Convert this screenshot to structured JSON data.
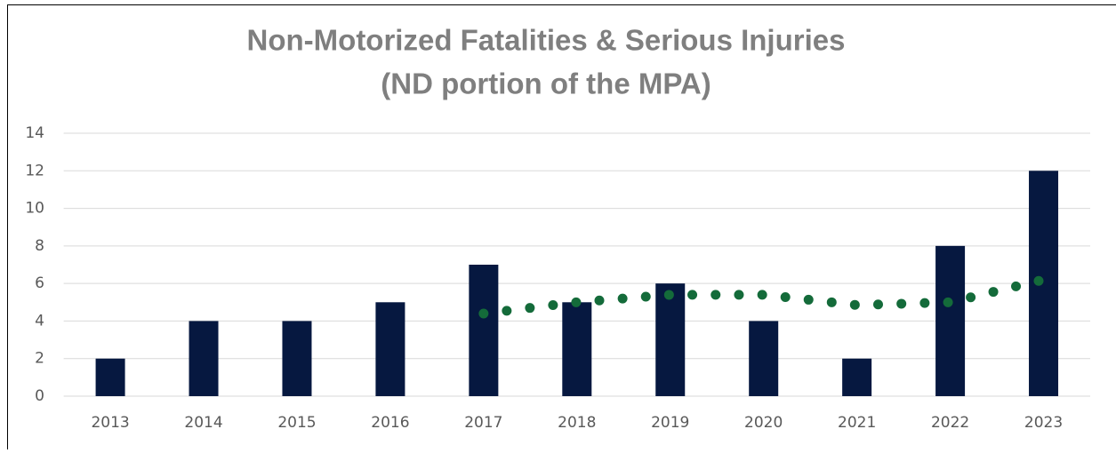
{
  "chart_data": {
    "type": "bar",
    "title": [
      "Non-Motorized Fatalities & Serious Injuries",
      "(ND portion of the MPA)"
    ],
    "categories": [
      "2013",
      "2014",
      "2015",
      "2016",
      "2017",
      "2018",
      "2019",
      "2020",
      "2021",
      "2022",
      "2023"
    ],
    "values": [
      2,
      4,
      4,
      5,
      7,
      5,
      6,
      4,
      2,
      8,
      12
    ],
    "color": "#061840",
    "trend": {
      "color": "#146b3a",
      "values": [
        null,
        null,
        null,
        null,
        4.4,
        5.0,
        5.4,
        5.4,
        4.85,
        5.0,
        6.2
      ]
    },
    "ylim": [
      0,
      14
    ],
    "yticks": [
      0,
      2,
      4,
      6,
      8,
      10,
      12,
      14
    ],
    "grid": true
  }
}
